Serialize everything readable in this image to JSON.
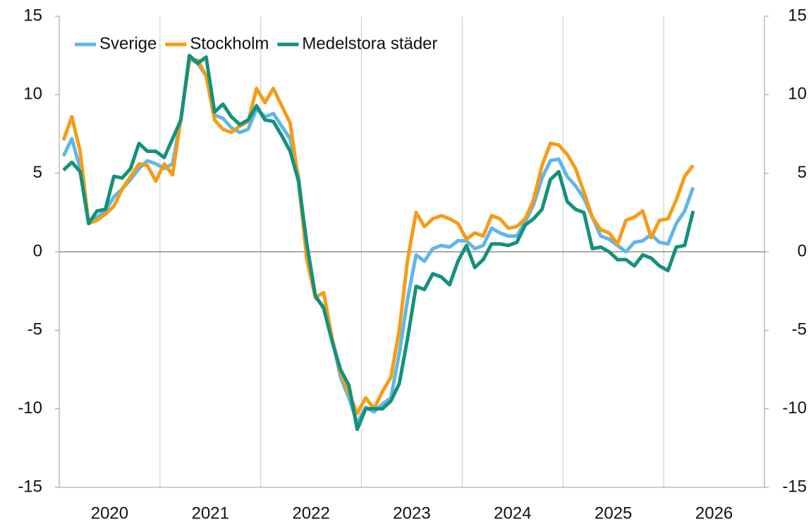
{
  "chart_data": {
    "type": "line",
    "x": [
      2020.042,
      2020.125,
      2020.208,
      2020.292,
      2020.375,
      2020.458,
      2020.542,
      2020.625,
      2020.708,
      2020.792,
      2020.875,
      2020.958,
      2021.042,
      2021.125,
      2021.208,
      2021.292,
      2021.375,
      2021.458,
      2021.542,
      2021.625,
      2021.708,
      2021.792,
      2021.875,
      2021.958,
      2022.042,
      2022.125,
      2022.208,
      2022.292,
      2022.375,
      2022.458,
      2022.542,
      2022.625,
      2022.708,
      2022.792,
      2022.875,
      2022.958,
      2023.042,
      2023.125,
      2023.208,
      2023.292,
      2023.375,
      2023.458,
      2023.542,
      2023.625,
      2023.708,
      2023.792,
      2023.875,
      2023.958,
      2024.042,
      2024.125,
      2024.208,
      2024.292,
      2024.375,
      2024.458,
      2024.542,
      2024.625,
      2024.708,
      2024.792,
      2024.875,
      2024.958,
      2025.042,
      2025.125,
      2025.208,
      2025.292,
      2025.375,
      2025.458,
      2025.542,
      2025.625,
      2025.708,
      2025.792,
      2025.875,
      2025.958,
      2026.042,
      2026.125,
      2026.208,
      2026.292
    ],
    "series": [
      {
        "name": "Sverige",
        "color": "#5fb6ea",
        "values": [
          6.1,
          7.2,
          5.3,
          1.8,
          2.2,
          2.6,
          3.5,
          4.0,
          4.6,
          5.3,
          5.8,
          5.6,
          5.3,
          5.6,
          8.5,
          12.3,
          12.0,
          11.2,
          8.7,
          8.5,
          7.9,
          7.6,
          7.8,
          9.1,
          8.6,
          8.8,
          8.0,
          7.2,
          4.8,
          0.0,
          -2.9,
          -3.5,
          -5.5,
          -8.0,
          -9.3,
          -10.9,
          -9.9,
          -10.2,
          -9.7,
          -9.3,
          -6.5,
          -3.0,
          -0.2,
          -0.6,
          0.2,
          0.4,
          0.3,
          0.7,
          0.7,
          0.2,
          0.4,
          1.5,
          1.2,
          1.0,
          1.0,
          1.9,
          3.0,
          4.7,
          5.8,
          5.9,
          4.8,
          4.2,
          3.4,
          2.2,
          1.0,
          0.8,
          0.4,
          0.0,
          0.6,
          0.7,
          1.1,
          0.6,
          0.5,
          1.8,
          2.6,
          4.1
        ]
      },
      {
        "name": "Stockholm",
        "color": "#f59c17",
        "values": [
          7.1,
          8.6,
          6.4,
          1.8,
          2.0,
          2.4,
          2.9,
          4.0,
          4.8,
          5.6,
          5.5,
          4.5,
          5.6,
          4.9,
          8.5,
          12.2,
          12.2,
          11.2,
          8.4,
          7.8,
          7.6,
          8.0,
          8.3,
          10.4,
          9.5,
          10.4,
          9.3,
          8.2,
          4.5,
          -0.5,
          -2.9,
          -2.6,
          -5.5,
          -7.7,
          -9.0,
          -10.3,
          -9.3,
          -10.0,
          -8.9,
          -8.0,
          -5.0,
          -0.5,
          2.5,
          1.6,
          2.1,
          2.3,
          2.1,
          1.8,
          0.8,
          1.2,
          1.0,
          2.3,
          2.1,
          1.5,
          1.6,
          2.1,
          3.3,
          5.5,
          6.9,
          6.8,
          6.2,
          5.3,
          3.8,
          2.2,
          1.4,
          1.2,
          0.5,
          2.0,
          2.2,
          2.6,
          0.9,
          2.0,
          2.1,
          3.3,
          4.8,
          5.5
        ]
      },
      {
        "name": "Medelstora städer",
        "color": "#13917c",
        "values": [
          5.2,
          5.7,
          5.1,
          1.8,
          2.6,
          2.7,
          4.8,
          4.7,
          5.3,
          6.9,
          6.4,
          6.4,
          6.0,
          7.2,
          8.4,
          12.5,
          12.0,
          12.4,
          8.9,
          9.4,
          8.6,
          8.1,
          8.4,
          9.3,
          8.4,
          8.3,
          7.4,
          6.4,
          4.5,
          0.5,
          -2.8,
          -3.6,
          -5.7,
          -7.5,
          -8.5,
          -11.3,
          -10.0,
          -10.0,
          -10.0,
          -9.5,
          -8.4,
          -5.5,
          -2.2,
          -2.4,
          -1.4,
          -1.6,
          -2.1,
          -0.6,
          0.4,
          -1.0,
          -0.5,
          0.5,
          0.5,
          0.4,
          0.6,
          1.7,
          2.1,
          2.7,
          4.6,
          5.1,
          3.2,
          2.7,
          2.5,
          0.2,
          0.3,
          0.0,
          -0.5,
          -0.5,
          -0.9,
          -0.2,
          -0.4,
          -0.9,
          -1.2,
          0.3,
          0.4,
          2.6
        ]
      }
    ],
    "xlim": [
      2020,
      2027
    ],
    "xticks": [
      {
        "value": 2020.5,
        "label": "2020"
      },
      {
        "value": 2021.5,
        "label": "2021"
      },
      {
        "value": 2022.5,
        "label": "2022"
      },
      {
        "value": 2023.5,
        "label": "2023"
      },
      {
        "value": 2024.5,
        "label": "2024"
      },
      {
        "value": 2025.5,
        "label": "2025"
      },
      {
        "value": 2026.5,
        "label": "2026"
      }
    ],
    "xgrid": [
      2021,
      2022,
      2023,
      2024,
      2025,
      2026
    ],
    "ylim": [
      -15,
      15
    ],
    "yticks": [
      -15,
      -10,
      -5,
      0,
      5,
      10,
      15
    ],
    "y2lim": [
      -15,
      15
    ],
    "y2ticks": [
      -15,
      -10,
      -5,
      0,
      5,
      10,
      15
    ],
    "legend": "top-left"
  }
}
